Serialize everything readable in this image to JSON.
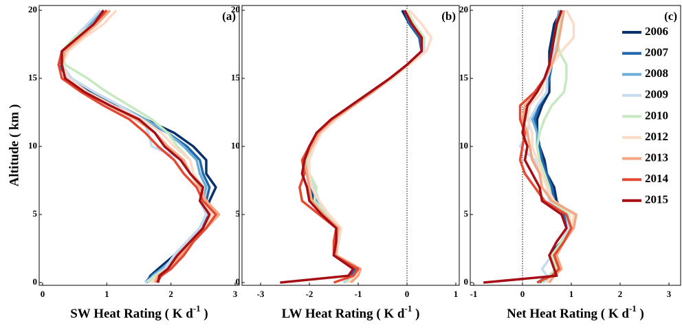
{
  "chart_data": [
    {
      "type": "line",
      "panel_label": "(a)",
      "ylabel": "Altitude ( km )",
      "xlabel": {
        "text": "SW Heat Rating ( K d",
        "sup": "-1",
        "end": " )"
      },
      "xlim": [
        0,
        3
      ],
      "xticks": [
        0,
        1,
        2,
        3
      ],
      "ylim": [
        0,
        20
      ],
      "yticks": [
        0,
        5,
        10,
        15,
        20
      ],
      "zero_line": false,
      "y": [
        0,
        0.5,
        1,
        2,
        3,
        4,
        5,
        6,
        7,
        8,
        9,
        10,
        11,
        12,
        13,
        14,
        15,
        16,
        17,
        18,
        19,
        20
      ],
      "series": [
        {
          "color": "#08306b",
          "values": [
            1.62,
            1.68,
            1.8,
            2.05,
            2.25,
            2.45,
            2.55,
            2.6,
            2.7,
            2.55,
            2.55,
            2.35,
            2.05,
            1.6,
            1.15,
            0.75,
            0.4,
            0.25,
            0.35,
            0.6,
            0.8,
            1.0
          ]
        },
        {
          "color": "#2166ac",
          "values": [
            1.6,
            1.7,
            1.85,
            2.1,
            2.3,
            2.5,
            2.55,
            2.55,
            2.6,
            2.5,
            2.45,
            2.25,
            1.95,
            1.55,
            1.1,
            0.7,
            0.4,
            0.25,
            0.3,
            0.55,
            0.75,
            0.95
          ]
        },
        {
          "color": "#6baed6",
          "values": [
            1.65,
            1.72,
            1.85,
            2.1,
            2.3,
            2.5,
            2.6,
            2.5,
            2.55,
            2.45,
            2.4,
            2.2,
            1.95,
            1.6,
            1.2,
            0.8,
            0.45,
            0.3,
            0.3,
            0.5,
            0.75,
            0.95
          ]
        },
        {
          "color": "#c6dbef",
          "values": [
            1.6,
            1.75,
            1.9,
            2.05,
            2.25,
            2.45,
            2.55,
            2.45,
            2.5,
            2.3,
            2.2,
            1.7,
            1.65,
            1.55,
            1.2,
            0.8,
            0.45,
            0.3,
            0.3,
            0.5,
            0.7,
            0.9
          ]
        },
        {
          "color": "#c7e9c0",
          "values": [
            1.65,
            1.75,
            1.95,
            2.1,
            2.3,
            2.5,
            2.6,
            2.45,
            2.5,
            2.35,
            2.3,
            2.1,
            1.95,
            1.7,
            1.35,
            1.0,
            0.7,
            0.35,
            0.3,
            0.5,
            0.8,
            1.0
          ]
        },
        {
          "color": "#fddbc7",
          "values": [
            1.7,
            1.8,
            1.95,
            2.15,
            2.35,
            2.5,
            2.65,
            2.5,
            2.5,
            2.35,
            2.3,
            2.05,
            1.85,
            1.55,
            1.1,
            0.7,
            0.4,
            0.3,
            0.4,
            0.65,
            0.95,
            1.15
          ]
        },
        {
          "color": "#f4a582",
          "values": [
            1.75,
            1.8,
            1.95,
            2.15,
            2.35,
            2.55,
            2.75,
            2.55,
            2.45,
            2.3,
            2.2,
            1.95,
            1.75,
            1.45,
            1.05,
            0.65,
            0.35,
            0.3,
            0.35,
            0.6,
            0.85,
            1.05
          ]
        },
        {
          "color": "#e34a33",
          "values": [
            1.78,
            1.85,
            2.0,
            2.2,
            2.35,
            2.55,
            2.7,
            2.5,
            2.4,
            2.2,
            2.05,
            1.8,
            1.6,
            1.35,
            0.95,
            0.6,
            0.3,
            0.25,
            0.3,
            0.55,
            0.8,
            1.0
          ]
        },
        {
          "color": "#a50f15",
          "values": [
            1.8,
            1.82,
            1.95,
            2.1,
            2.3,
            2.5,
            2.6,
            2.45,
            2.5,
            2.3,
            2.15,
            1.9,
            1.75,
            1.5,
            1.05,
            0.65,
            0.35,
            0.3,
            0.3,
            0.55,
            0.8,
            0.95
          ]
        }
      ]
    },
    {
      "type": "line",
      "panel_label": "(b)",
      "xlabel": {
        "text": "LW Heat Rating ( K d",
        "sup": "-1",
        "end": " )"
      },
      "xlim": [
        -3,
        1
      ],
      "xticks": [
        -3,
        -2,
        -1,
        0,
        1
      ],
      "ylim": [
        0,
        20
      ],
      "yticks": [
        0,
        5,
        10,
        15,
        20
      ],
      "zero_line": true,
      "y": [
        0,
        0.5,
        1,
        2,
        3,
        4,
        5,
        6,
        7,
        8,
        9,
        10,
        11,
        12,
        13,
        14,
        15,
        16,
        17,
        18,
        19,
        20
      ],
      "series": [
        {
          "color": "#08306b",
          "values": [
            -1.3,
            -1.15,
            -1.1,
            -1.5,
            -1.45,
            -1.4,
            -1.7,
            -1.9,
            -2.0,
            -2.05,
            -2.05,
            -1.95,
            -1.8,
            -1.5,
            -1.1,
            -0.7,
            -0.35,
            0.0,
            0.3,
            0.25,
            0.05,
            -0.1
          ]
        },
        {
          "color": "#2166ac",
          "values": [
            -1.25,
            -1.15,
            -1.05,
            -1.5,
            -1.45,
            -1.4,
            -1.65,
            -1.85,
            -1.95,
            -2.05,
            -2.1,
            -2.0,
            -1.85,
            -1.55,
            -1.15,
            -0.75,
            -0.35,
            0.0,
            0.3,
            0.25,
            0.05,
            -0.05
          ]
        },
        {
          "color": "#6baed6",
          "values": [
            -1.2,
            -1.1,
            -1.0,
            -1.45,
            -1.4,
            -1.35,
            -1.65,
            -1.85,
            -1.95,
            -2.0,
            -2.05,
            -1.95,
            -1.85,
            -1.55,
            -1.15,
            -0.75,
            -0.35,
            0.0,
            0.3,
            0.3,
            0.1,
            0.0
          ]
        },
        {
          "color": "#c6dbef",
          "values": [
            -1.3,
            -1.2,
            -1.1,
            -1.5,
            -1.45,
            -1.4,
            -1.7,
            -1.8,
            -1.9,
            -2.0,
            -2.05,
            -1.9,
            -1.8,
            -1.5,
            -1.1,
            -0.7,
            -0.35,
            0.0,
            0.35,
            0.35,
            0.15,
            0.0
          ]
        },
        {
          "color": "#c7e9c0",
          "values": [
            -1.25,
            -1.1,
            -1.0,
            -1.45,
            -1.45,
            -1.35,
            -1.65,
            -1.9,
            -1.85,
            -2.0,
            -2.05,
            -1.95,
            -1.8,
            -1.5,
            -1.1,
            -0.7,
            -0.35,
            0.0,
            0.3,
            0.35,
            0.15,
            0.0
          ]
        },
        {
          "color": "#fddbc7",
          "values": [
            -1.2,
            -1.05,
            -0.95,
            -1.45,
            -1.4,
            -1.35,
            -1.6,
            -1.8,
            -1.95,
            -2.0,
            -2.0,
            -1.9,
            -1.75,
            -1.45,
            -1.1,
            -0.7,
            -0.3,
            0.05,
            0.4,
            0.5,
            0.3,
            0.05
          ]
        },
        {
          "color": "#f4a582",
          "values": [
            -1.15,
            -1.0,
            -0.95,
            -1.45,
            -1.45,
            -1.4,
            -1.7,
            -1.95,
            -2.0,
            -2.05,
            -2.1,
            -1.95,
            -1.8,
            -1.5,
            -1.1,
            -0.7,
            -0.35,
            0.0,
            0.3,
            0.3,
            0.1,
            -0.05
          ]
        },
        {
          "color": "#e34a33",
          "values": [
            -1.5,
            -1.1,
            -1.0,
            -1.5,
            -1.5,
            -1.45,
            -1.8,
            -2.15,
            -2.2,
            -2.1,
            -2.15,
            -2.0,
            -1.85,
            -1.55,
            -1.15,
            -0.75,
            -0.35,
            0.0,
            0.3,
            0.3,
            0.1,
            -0.05
          ]
        },
        {
          "color": "#a50f15",
          "values": [
            -2.6,
            -1.2,
            -1.1,
            -1.5,
            -1.45,
            -1.45,
            -1.75,
            -2.0,
            -2.05,
            -2.15,
            -2.1,
            -2.0,
            -1.85,
            -1.55,
            -1.15,
            -0.75,
            -0.35,
            0.0,
            0.3,
            0.3,
            0.1,
            -0.05
          ]
        }
      ]
    },
    {
      "type": "line",
      "panel_label": "(c)",
      "legend": "upper right",
      "xlabel": {
        "text": "Net Heat Rating ( K d",
        "sup": "-1",
        "end": " )"
      },
      "xlim": [
        -1,
        3
      ],
      "xticks": [
        -1,
        0,
        1,
        2,
        3
      ],
      "ylim": [
        0,
        20
      ],
      "yticks": [
        0,
        5,
        10,
        15,
        20
      ],
      "zero_line": true,
      "y": [
        0,
        0.5,
        1,
        2,
        3,
        4,
        5,
        6,
        7,
        8,
        9,
        10,
        11,
        12,
        13,
        14,
        15,
        16,
        17,
        18,
        19,
        20
      ],
      "series": [
        {
          "name": "2006",
          "color": "#08306b",
          "values": [
            0.3,
            0.55,
            0.7,
            0.55,
            0.8,
            0.95,
            0.85,
            0.7,
            0.65,
            0.5,
            0.45,
            0.35,
            0.3,
            0.3,
            0.4,
            0.55,
            0.55,
            0.55,
            0.55,
            0.6,
            0.65,
            0.8
          ]
        },
        {
          "name": "2007",
          "color": "#2166ac",
          "values": [
            0.35,
            0.55,
            0.7,
            0.6,
            0.8,
            0.95,
            0.85,
            0.65,
            0.6,
            0.5,
            0.4,
            0.35,
            0.3,
            0.25,
            0.35,
            0.5,
            0.55,
            0.6,
            0.6,
            0.65,
            0.7,
            0.75
          ]
        },
        {
          "name": "2008",
          "color": "#6baed6",
          "values": [
            0.4,
            0.6,
            0.7,
            0.6,
            0.8,
            0.95,
            0.9,
            0.6,
            0.55,
            0.45,
            0.35,
            0.3,
            0.3,
            0.2,
            0.3,
            0.5,
            0.5,
            0.6,
            0.65,
            0.75,
            0.7,
            0.75
          ]
        },
        {
          "name": "2009",
          "color": "#c6dbef",
          "values": [
            0.45,
            0.5,
            0.4,
            0.6,
            0.8,
            0.95,
            0.9,
            0.55,
            0.5,
            0.4,
            0.25,
            -0.05,
            0.1,
            0.15,
            0.3,
            0.5,
            0.5,
            0.6,
            0.65,
            0.75,
            0.8,
            0.8
          ]
        },
        {
          "name": "2010",
          "color": "#c7e9c0",
          "values": [
            0.4,
            0.55,
            0.7,
            0.6,
            0.8,
            1.0,
            0.95,
            0.6,
            0.55,
            0.45,
            0.35,
            0.3,
            0.35,
            0.45,
            0.6,
            0.85,
            0.9,
            0.9,
            0.75,
            0.7,
            0.75,
            0.8
          ]
        },
        {
          "name": "2012",
          "color": "#fddbc7",
          "values": [
            0.5,
            0.6,
            0.75,
            0.65,
            0.85,
            1.0,
            1.05,
            0.65,
            0.5,
            0.4,
            0.3,
            0.2,
            0.2,
            0.1,
            0.15,
            0.4,
            0.45,
            0.6,
            0.8,
            1.05,
            1.05,
            0.9
          ]
        },
        {
          "name": "2013",
          "color": "#f4a582",
          "values": [
            0.55,
            0.65,
            0.8,
            0.7,
            0.85,
            1.05,
            1.1,
            0.6,
            0.4,
            0.35,
            0.2,
            0.15,
            0.1,
            0.0,
            0.05,
            0.3,
            0.45,
            0.6,
            0.7,
            0.75,
            0.8,
            0.85
          ]
        },
        {
          "name": "2014",
          "color": "#e34a33",
          "values": [
            0.3,
            0.6,
            0.75,
            0.65,
            0.85,
            1.0,
            0.9,
            0.45,
            0.25,
            0.05,
            -0.05,
            0.0,
            0.05,
            -0.05,
            -0.05,
            0.25,
            0.45,
            0.55,
            0.6,
            0.65,
            0.7,
            0.8
          ]
        },
        {
          "name": "2015",
          "color": "#a50f15",
          "values": [
            -0.8,
            0.7,
            0.65,
            0.55,
            0.7,
            0.9,
            0.8,
            0.4,
            0.35,
            0.2,
            0.05,
            0.1,
            0.0,
            0.05,
            0.1,
            0.3,
            0.45,
            0.55,
            0.6,
            0.65,
            0.7,
            0.8
          ]
        }
      ]
    }
  ]
}
